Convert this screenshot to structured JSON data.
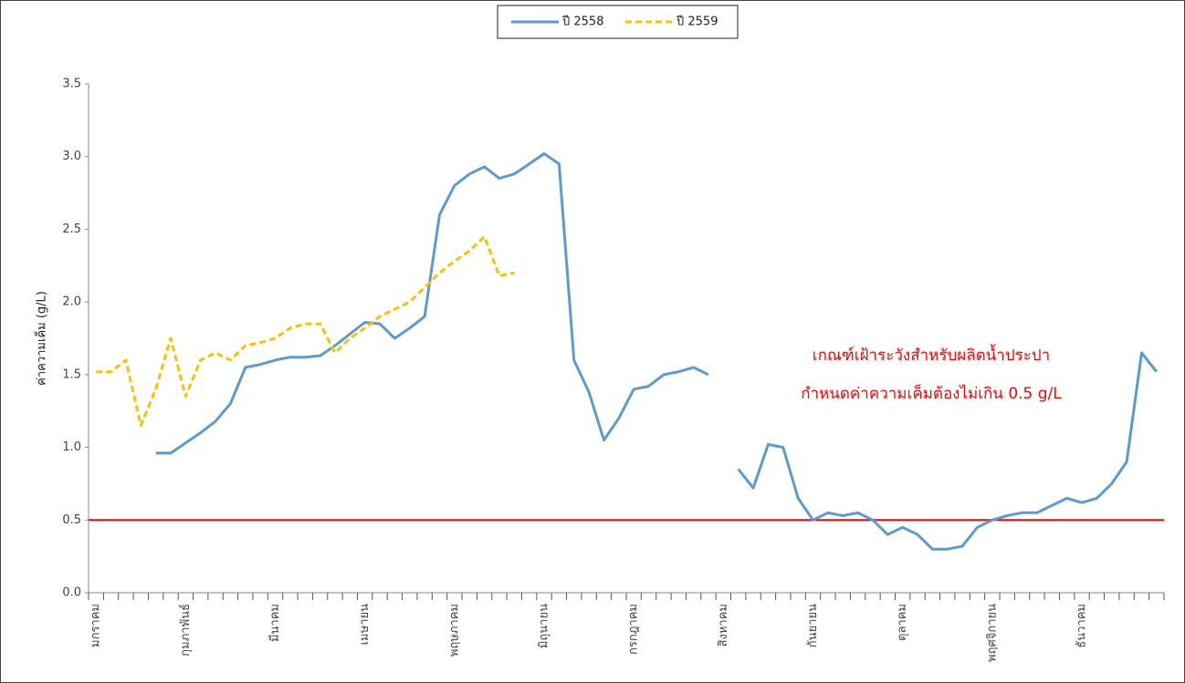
{
  "chart_data": {
    "type": "line",
    "y_label": "ค่าความเค็ม (g/L)",
    "categories": [
      "มกราคม",
      null,
      null,
      null,
      null,
      null,
      "กุมภาพันธ์",
      null,
      null,
      null,
      null,
      null,
      "มีนาคม",
      null,
      null,
      null,
      null,
      null,
      "เมษายน",
      null,
      null,
      null,
      null,
      null,
      "พฤษภาคม",
      null,
      null,
      null,
      null,
      null,
      "มิถุนายน",
      null,
      null,
      null,
      null,
      null,
      "กรกฎาคม",
      null,
      null,
      null,
      null,
      null,
      "สิงหาคม",
      null,
      null,
      null,
      null,
      null,
      "กันยายน",
      null,
      null,
      null,
      null,
      null,
      "ตุลาคม",
      null,
      null,
      null,
      null,
      null,
      "พฤศจิกายน",
      null,
      null,
      null,
      null,
      null,
      "ธันวาคม",
      null,
      null,
      null,
      null,
      null
    ],
    "series": [
      {
        "name": "ปี 2558",
        "color": "#5b9bd5",
        "dashed": false,
        "values": [
          null,
          null,
          null,
          null,
          0.96,
          0.96,
          1.03,
          1.1,
          1.18,
          1.3,
          1.55,
          1.57,
          1.6,
          1.62,
          1.62,
          1.63,
          1.7,
          1.78,
          1.86,
          1.85,
          1.75,
          1.82,
          1.9,
          2.6,
          2.8,
          2.88,
          2.93,
          2.85,
          2.88,
          2.95,
          3.02,
          2.95,
          1.6,
          1.38,
          1.05,
          1.2,
          1.4,
          1.42,
          1.5,
          1.52,
          1.55,
          1.5,
          null,
          0.85,
          0.72,
          1.02,
          1.0,
          0.65,
          0.5,
          0.55,
          0.53,
          0.55,
          0.5,
          0.4,
          0.45,
          0.4,
          0.3,
          0.3,
          0.32,
          0.45,
          0.5,
          0.53,
          0.55,
          0.55,
          0.6,
          0.65,
          0.62,
          0.65,
          0.75,
          0.9,
          1.65,
          1.52
        ]
      },
      {
        "name": "ปี 2559",
        "color": "#ffc000",
        "dashed": true,
        "values": [
          1.52,
          1.52,
          1.6,
          1.15,
          1.4,
          1.75,
          1.35,
          1.6,
          1.65,
          1.6,
          1.7,
          1.72,
          1.75,
          1.82,
          1.85,
          1.85,
          1.65,
          1.75,
          1.82,
          1.9,
          1.95,
          2.0,
          2.1,
          2.2,
          2.28,
          2.35,
          2.45,
          2.18,
          2.2,
          null,
          null,
          null,
          null,
          null,
          null,
          null,
          null,
          null,
          null,
          null,
          null,
          null,
          null,
          null,
          null,
          null,
          null,
          null,
          null,
          null,
          null,
          null,
          null,
          null,
          null,
          null,
          null,
          null,
          null,
          null,
          null,
          null,
          null,
          null,
          null,
          null,
          null,
          null,
          null,
          null,
          null,
          null
        ]
      }
    ],
    "threshold": {
      "value": 0.5,
      "color": "#ff0000"
    },
    "annotation": [
      "เกณฑ์เฝ้าระวังสำหรับผลิตน้ำประปา",
      "กำหนดค่าความเค็มต้องไม่เกิน 0.5 g/L"
    ],
    "ylim": [
      0,
      3.5
    ],
    "yticks": [
      {
        "value": 0,
        "label": "0.0"
      },
      0.5,
      {
        "value": 1,
        "label": "1.0"
      },
      1.5,
      {
        "value": 2,
        "label": "2.0"
      },
      2.5,
      {
        "value": 3,
        "label": "3.0"
      },
      3.5
    ],
    "legend": "top"
  }
}
